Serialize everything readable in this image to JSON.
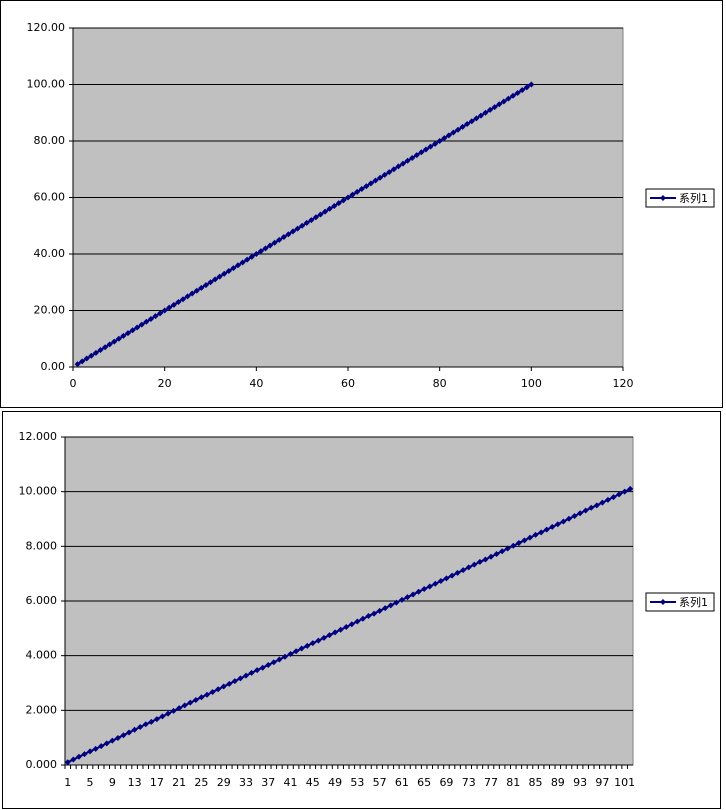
{
  "chart_data": [
    {
      "type": "scatter",
      "line": true,
      "color": "#000080",
      "legend": "right",
      "grid": true,
      "series": [
        {
          "name": "系列1",
          "color": "#000080",
          "x": [
            1,
            2,
            3,
            4,
            5,
            6,
            7,
            8,
            9,
            10,
            11,
            12,
            13,
            14,
            15,
            16,
            17,
            18,
            19,
            20,
            21,
            22,
            23,
            24,
            25,
            26,
            27,
            28,
            29,
            30,
            31,
            32,
            33,
            34,
            35,
            36,
            37,
            38,
            39,
            40,
            41,
            42,
            43,
            44,
            45,
            46,
            47,
            48,
            49,
            50,
            51,
            52,
            53,
            54,
            55,
            56,
            57,
            58,
            59,
            60,
            61,
            62,
            63,
            64,
            65,
            66,
            67,
            68,
            69,
            70,
            71,
            72,
            73,
            74,
            75,
            76,
            77,
            78,
            79,
            80,
            81,
            82,
            83,
            84,
            85,
            86,
            87,
            88,
            89,
            90,
            91,
            92,
            93,
            94,
            95,
            96,
            97,
            98,
            99,
            100
          ],
          "values": [
            1,
            2,
            3,
            4,
            5,
            6,
            7,
            8,
            9,
            10,
            11,
            12,
            13,
            14,
            15,
            16,
            17,
            18,
            19,
            20,
            21,
            22,
            23,
            24,
            25,
            26,
            27,
            28,
            29,
            30,
            31,
            32,
            33,
            34,
            35,
            36,
            37,
            38,
            39,
            40,
            41,
            42,
            43,
            44,
            45,
            46,
            47,
            48,
            49,
            50,
            51,
            52,
            53,
            54,
            55,
            56,
            57,
            58,
            59,
            60,
            61,
            62,
            63,
            64,
            65,
            66,
            67,
            68,
            69,
            70,
            71,
            72,
            73,
            74,
            75,
            76,
            77,
            78,
            79,
            80,
            81,
            82,
            83,
            84,
            85,
            86,
            87,
            88,
            89,
            90,
            91,
            92,
            93,
            94,
            95,
            96,
            97,
            98,
            99,
            100
          ]
        }
      ],
      "xlim": [
        0,
        120
      ],
      "xticks": [
        0,
        20,
        40,
        60,
        80,
        100,
        120
      ],
      "ylim": [
        0,
        120
      ],
      "yticks": [
        {
          "value": 0,
          "label": "0.00"
        },
        {
          "value": 20,
          "label": "20.00"
        },
        {
          "value": 40,
          "label": "40.00"
        },
        {
          "value": 60,
          "label": "60.00"
        },
        {
          "value": 80,
          "label": "80.00"
        },
        {
          "value": 100,
          "label": "100.00"
        },
        {
          "value": 120,
          "label": "120.00"
        }
      ]
    },
    {
      "type": "line",
      "color": "#000080",
      "legend": "right",
      "grid": true,
      "categories": [
        "1",
        null,
        null,
        null,
        "5",
        null,
        null,
        null,
        "9",
        null,
        null,
        null,
        "13",
        null,
        null,
        null,
        "17",
        null,
        null,
        null,
        "21",
        null,
        null,
        null,
        "25",
        null,
        null,
        null,
        "29",
        null,
        null,
        null,
        "33",
        null,
        null,
        null,
        "37",
        null,
        null,
        null,
        "41",
        null,
        null,
        null,
        "45",
        null,
        null,
        null,
        "49",
        null,
        null,
        null,
        "53",
        null,
        null,
        null,
        "57",
        null,
        null,
        null,
        "61",
        null,
        null,
        null,
        "65",
        null,
        null,
        null,
        "69",
        null,
        null,
        null,
        "73",
        null,
        null,
        null,
        "77",
        null,
        null,
        null,
        "81",
        null,
        null,
        null,
        "85",
        null,
        null,
        null,
        "89",
        null,
        null,
        null,
        "93",
        null,
        null,
        null,
        "97",
        null,
        null,
        null,
        "101",
        null
      ],
      "series": [
        {
          "name": "系列1",
          "color": "#000080",
          "values": [
            0.1,
            0.2,
            0.3,
            0.4,
            0.5,
            0.59,
            0.69,
            0.79,
            0.89,
            0.99,
            1.09,
            1.19,
            1.29,
            1.39,
            1.49,
            1.58,
            1.68,
            1.78,
            1.88,
            1.98,
            2.08,
            2.18,
            2.28,
            2.38,
            2.48,
            2.57,
            2.67,
            2.77,
            2.87,
            2.97,
            3.07,
            3.17,
            3.27,
            3.37,
            3.47,
            3.56,
            3.66,
            3.76,
            3.86,
            3.96,
            4.06,
            4.16,
            4.26,
            4.36,
            4.46,
            4.55,
            4.65,
            4.75,
            4.85,
            4.95,
            5.05,
            5.15,
            5.25,
            5.35,
            5.45,
            5.54,
            5.64,
            5.74,
            5.84,
            5.94,
            6.04,
            6.14,
            6.24,
            6.34,
            6.44,
            6.53,
            6.63,
            6.73,
            6.83,
            6.93,
            7.03,
            7.13,
            7.23,
            7.33,
            7.43,
            7.52,
            7.62,
            7.72,
            7.82,
            7.92,
            8.02,
            8.12,
            8.22,
            8.32,
            8.42,
            8.51,
            8.61,
            8.71,
            8.81,
            8.91,
            9.01,
            9.11,
            9.21,
            9.31,
            9.41,
            9.5,
            9.6,
            9.7,
            9.8,
            9.9,
            10.0,
            10.1
          ]
        }
      ],
      "ylim": [
        0,
        12
      ],
      "yticks": [
        {
          "value": 0,
          "label": "0.000"
        },
        {
          "value": 2,
          "label": "2.000"
        },
        {
          "value": 4,
          "label": "4.000"
        },
        {
          "value": 6,
          "label": "6.000"
        },
        {
          "value": 8,
          "label": "8.000"
        },
        {
          "value": 10,
          "label": "10.000"
        },
        {
          "value": 12,
          "label": "12.000"
        }
      ]
    }
  ]
}
